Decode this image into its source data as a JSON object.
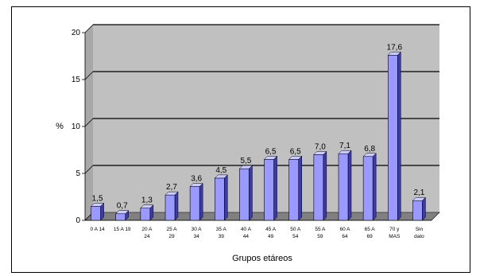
{
  "chart_data": {
    "type": "bar",
    "title": "",
    "xlabel": "Grupos etáreos",
    "ylabel": "%",
    "ylim": [
      0,
      20
    ],
    "yticks": [
      "0",
      "5",
      "10",
      "15",
      "20"
    ],
    "grid": true,
    "categories": [
      [
        "0 A 14"
      ],
      [
        "15 A 19"
      ],
      [
        "20 A",
        "24"
      ],
      [
        "25 A",
        "29"
      ],
      [
        "30 A",
        "34"
      ],
      [
        "35 A",
        "39"
      ],
      [
        "40 A",
        "44"
      ],
      [
        "45 A",
        "49"
      ],
      [
        "50 A",
        "54"
      ],
      [
        "55 A",
        "59"
      ],
      [
        "60 A",
        "64"
      ],
      [
        "65 A",
        "69"
      ],
      [
        "70 y",
        "MAS"
      ],
      [
        "Sin",
        "dato"
      ]
    ],
    "values": [
      1.5,
      0.7,
      1.3,
      2.7,
      3.6,
      4.5,
      5.5,
      6.5,
      6.5,
      7.0,
      7.1,
      6.8,
      17.6,
      2.1
    ],
    "value_labels": [
      "1,5",
      "0,7",
      "1,3",
      "2,7",
      "3,6",
      "4,5",
      "5,5",
      "6,5",
      "6,5",
      "7,0",
      "7,1",
      "6,8",
      "17,6",
      "2,1"
    ],
    "colors": {
      "plot_bg": "#c0c0c0",
      "floor": "#808080",
      "bar_front": "#9999ff",
      "bar_side": "#3b3bb0",
      "bar_top": "#ccccff",
      "grid": "#000000"
    }
  }
}
